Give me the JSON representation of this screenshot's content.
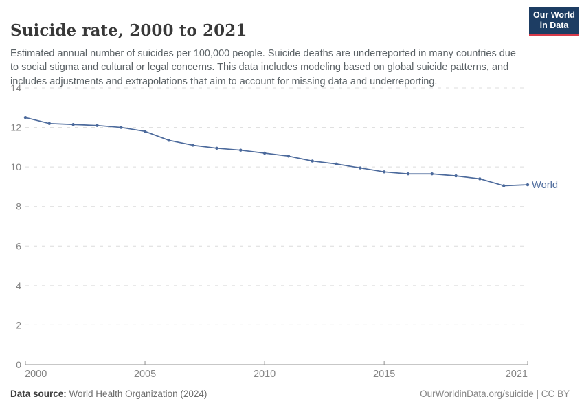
{
  "header": {
    "title": "Suicide rate, 2000 to 2021",
    "logo": {
      "line1": "Our World",
      "line2": "in Data"
    }
  },
  "subtitle": "Estimated annual number of suicides per 100,000 people. Suicide deaths are underreported in many countries due to social stigma and cultural or legal concerns. This data includes modeling based on global suicide patterns, and includes adjustments and extrapolations that aim to account for missing data and underreporting.",
  "chart_data": {
    "type": "line",
    "title": "Suicide rate, 2000 to 2021",
    "ylabel": "",
    "xlabel": "",
    "xlim": [
      2000,
      2021
    ],
    "ylim": [
      0,
      14
    ],
    "x_ticks": [
      2000,
      2005,
      2010,
      2015,
      2021
    ],
    "y_ticks": [
      0,
      2,
      4,
      6,
      8,
      10,
      12,
      14
    ],
    "grid": "horizontal-dashed",
    "legend_position": "end-of-line",
    "series": [
      {
        "name": "World",
        "color": "#4c6a9c",
        "x": [
          2000,
          2001,
          2002,
          2003,
          2004,
          2005,
          2006,
          2007,
          2008,
          2009,
          2010,
          2011,
          2012,
          2013,
          2014,
          2015,
          2016,
          2017,
          2018,
          2019,
          2020,
          2021
        ],
        "values": [
          12.5,
          12.2,
          12.15,
          12.1,
          12.0,
          11.8,
          11.35,
          11.1,
          10.95,
          10.85,
          10.7,
          10.55,
          10.3,
          10.15,
          9.95,
          9.75,
          9.65,
          9.65,
          9.55,
          9.4,
          9.05,
          9.1
        ]
      }
    ]
  },
  "footer": {
    "datasource_label": "Data source:",
    "datasource_value": "World Health Organization (2024)",
    "credit": "OurWorldinData.org/suicide | CC BY"
  },
  "colors": {
    "line": "#4c6a9c",
    "grid": "#dcdcdc",
    "axis": "#8f8f8f",
    "tick_label": "#858585",
    "logo_bg": "#1d3d63",
    "logo_accent": "#d73a49"
  }
}
